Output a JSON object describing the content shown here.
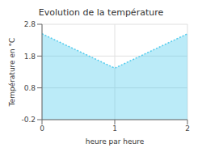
{
  "chart_data": {
    "type": "area",
    "title": "Evolution de la température",
    "xlabel": "heure par heure",
    "ylabel": "Température en °C",
    "x": [
      0,
      1,
      2
    ],
    "values": [
      2.5,
      1.42,
      2.5
    ],
    "xlim": [
      0,
      2
    ],
    "ylim": [
      -0.2,
      2.8
    ],
    "xticks": [
      0,
      1,
      2
    ],
    "yticks": [
      -0.2,
      0.8,
      1.8,
      2.8
    ],
    "color": "#55ccee",
    "line_style": "dotted",
    "grid": true
  }
}
